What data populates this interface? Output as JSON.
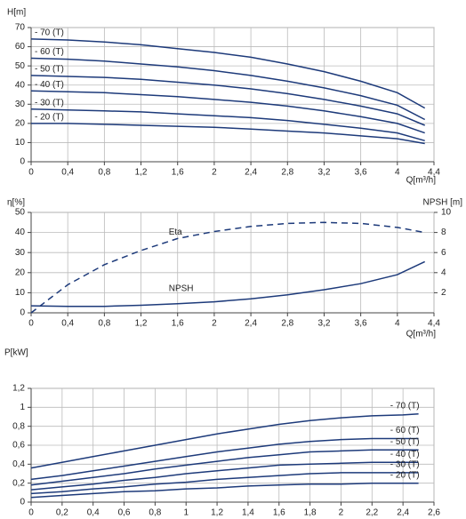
{
  "chart_data": [
    {
      "type": "line",
      "ylabel": "H[m]",
      "xlabel": "Q[m³/h]",
      "x": [
        0,
        0.4,
        0.8,
        1.2,
        1.6,
        2,
        2.4,
        2.8,
        3.2,
        3.6,
        4,
        4.3
      ],
      "xlim": [
        0,
        4.4
      ],
      "xticks": [
        0,
        {
          "value": 0.4,
          "label": "0,4"
        },
        {
          "value": 0.8,
          "label": "0,8"
        },
        {
          "value": 1.2,
          "label": "1,2"
        },
        {
          "value": 1.6,
          "label": "1,6"
        },
        2,
        {
          "value": 2.4,
          "label": "2,4"
        },
        {
          "value": 2.8,
          "label": "2,8"
        },
        {
          "value": 3.2,
          "label": "3,2"
        },
        {
          "value": 3.6,
          "label": "3,6"
        },
        4,
        {
          "value": 4.4,
          "label": "4,4"
        }
      ],
      "ylim": [
        0,
        70
      ],
      "yticks": [
        0,
        10,
        20,
        30,
        40,
        50,
        60,
        70
      ],
      "grid": true,
      "series": [
        {
          "name": "- 70 (T)",
          "color": "#1d3a7a",
          "values": [
            64,
            63.5,
            62.5,
            61,
            59,
            57,
            54.5,
            51,
            47,
            42,
            36,
            28
          ]
        },
        {
          "name": "- 60 (T)",
          "color": "#1d3a7a",
          "values": [
            54,
            53.5,
            52.5,
            51,
            49.5,
            47.5,
            45,
            42,
            38.5,
            34.5,
            29.5,
            22
          ]
        },
        {
          "name": "- 50 (T)",
          "color": "#1d3a7a",
          "values": [
            45,
            44.5,
            44,
            43,
            41.5,
            40,
            38,
            35.5,
            32.5,
            29,
            25,
            19
          ]
        },
        {
          "name": "- 40 (T)",
          "color": "#1d3a7a",
          "values": [
            37,
            36.5,
            36,
            35,
            34,
            32.5,
            31,
            29,
            26.5,
            23.5,
            20,
            15
          ]
        },
        {
          "name": "- 30 (T)",
          "color": "#1d3a7a",
          "values": [
            27.5,
            27,
            26.5,
            26,
            25,
            24,
            23,
            21.5,
            19.5,
            17.5,
            15,
            11
          ]
        },
        {
          "name": "- 20 (T)",
          "color": "#1d3a7a",
          "values": [
            20,
            20,
            19.5,
            19,
            18.5,
            18,
            17,
            16,
            15,
            13.5,
            12,
            9.5
          ]
        }
      ]
    },
    {
      "type": "line",
      "ylabel": "η[%]",
      "y2label": "NPSH [m]",
      "xlabel": "Q[m³/h]",
      "x": [
        0,
        0.4,
        0.8,
        1.2,
        1.6,
        2,
        2.4,
        2.8,
        3.2,
        3.6,
        4,
        4.3
      ],
      "xlim": [
        0,
        4.4
      ],
      "xticks": [
        0,
        {
          "value": 0.4,
          "label": "0,4"
        },
        {
          "value": 0.8,
          "label": "0,8"
        },
        {
          "value": 1.2,
          "label": "1,2"
        },
        {
          "value": 1.6,
          "label": "1,6"
        },
        2,
        {
          "value": 2.4,
          "label": "2,4"
        },
        {
          "value": 2.8,
          "label": "2,8"
        },
        {
          "value": 3.2,
          "label": "3,2"
        },
        {
          "value": 3.6,
          "label": "3,6"
        },
        4,
        {
          "value": 4.4,
          "label": "4,4"
        }
      ],
      "ylim": [
        0,
        50
      ],
      "yticks": [
        0,
        10,
        20,
        30,
        40,
        50
      ],
      "y2lim": [
        0,
        10
      ],
      "y2ticks": [
        2,
        4,
        6,
        8,
        10
      ],
      "grid": true,
      "series": [
        {
          "name": "Eta",
          "color": "#1d3a7a",
          "dashed": true,
          "values": [
            0,
            14,
            24,
            31,
            37,
            40.5,
            43,
            44.5,
            45,
            44.5,
            42.5,
            40
          ]
        },
        {
          "name": "NPSH",
          "color": "#1d3a7a",
          "axis": "y2",
          "values": [
            0.7,
            0.65,
            0.65,
            0.75,
            0.9,
            1.1,
            1.4,
            1.8,
            2.3,
            2.9,
            3.8,
            5.1
          ]
        }
      ]
    },
    {
      "type": "line",
      "ylabel": "P[kW]",
      "x": [
        0,
        0.2,
        0.4,
        0.6,
        0.8,
        1,
        1.2,
        1.4,
        1.6,
        1.8,
        2,
        2.2,
        2.4,
        2.5
      ],
      "xlim": [
        0,
        2.6
      ],
      "xticks": [
        0,
        {
          "value": 0.2,
          "label": "0,2"
        },
        {
          "value": 0.4,
          "label": "0,4"
        },
        {
          "value": 0.6,
          "label": "0,6"
        },
        {
          "value": 0.8,
          "label": "0,8"
        },
        1,
        {
          "value": 1.2,
          "label": "1,2"
        },
        {
          "value": 1.4,
          "label": "1,4"
        },
        {
          "value": 1.6,
          "label": "1,6"
        },
        {
          "value": 1.8,
          "label": "1,8"
        },
        2,
        {
          "value": 2.2,
          "label": "2,2"
        },
        {
          "value": 2.4,
          "label": "2,4"
        },
        {
          "value": 2.6,
          "label": "2,6"
        }
      ],
      "ylim": [
        0,
        1.2
      ],
      "yticks": [
        0,
        {
          "value": 0.2,
          "label": "0,2"
        },
        {
          "value": 0.4,
          "label": "0,4"
        },
        {
          "value": 0.6,
          "label": "0,6"
        },
        {
          "value": 0.8,
          "label": "0,8"
        },
        1,
        {
          "value": 1.2,
          "label": "1,2"
        }
      ],
      "grid": true,
      "series": [
        {
          "name": "- 70 (T)",
          "color": "#1d3a7a",
          "values": [
            0.36,
            0.42,
            0.48,
            0.54,
            0.6,
            0.66,
            0.72,
            0.77,
            0.82,
            0.86,
            0.89,
            0.91,
            0.92,
            0.93
          ]
        },
        {
          "name": "- 60 (T)",
          "color": "#1d3a7a",
          "values": [
            0.24,
            0.28,
            0.33,
            0.38,
            0.43,
            0.48,
            0.53,
            0.57,
            0.61,
            0.64,
            0.66,
            0.67,
            0.67,
            0.67
          ]
        },
        {
          "name": "- 50 (T)",
          "color": "#1d3a7a",
          "values": [
            0.18,
            0.22,
            0.26,
            0.3,
            0.35,
            0.39,
            0.43,
            0.47,
            0.5,
            0.53,
            0.54,
            0.55,
            0.55,
            0.55
          ]
        },
        {
          "name": "- 40 (T)",
          "color": "#1d3a7a",
          "values": [
            0.13,
            0.16,
            0.19,
            0.23,
            0.26,
            0.3,
            0.33,
            0.36,
            0.39,
            0.4,
            0.41,
            0.42,
            0.42,
            0.42
          ]
        },
        {
          "name": "- 30 (T)",
          "color": "#1d3a7a",
          "values": [
            0.09,
            0.11,
            0.14,
            0.16,
            0.19,
            0.21,
            0.24,
            0.26,
            0.28,
            0.3,
            0.31,
            0.31,
            0.31,
            0.31
          ]
        },
        {
          "name": "- 20 (T)",
          "color": "#1d3a7a",
          "values": [
            0.05,
            0.07,
            0.09,
            0.11,
            0.12,
            0.14,
            0.15,
            0.17,
            0.18,
            0.19,
            0.19,
            0.2,
            0.2,
            0.2
          ]
        }
      ]
    }
  ]
}
